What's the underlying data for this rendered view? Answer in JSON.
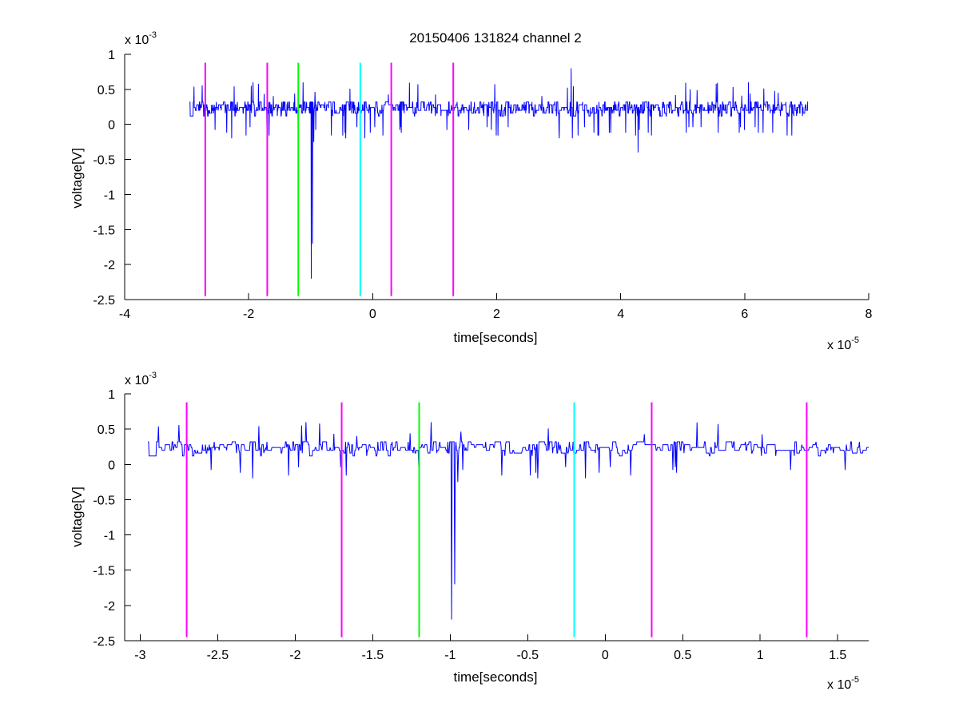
{
  "title": "20150406 131824 channel 2",
  "chart_data": [
    {
      "type": "line",
      "xlabel": "time[seconds]",
      "ylabel": "voltage[V]",
      "xlim": [
        -4e-05,
        8e-05
      ],
      "ylim": [
        -0.0025,
        0.001
      ],
      "x_ticks": [
        -4e-05,
        -2e-05,
        0,
        2e-05,
        4e-05,
        6e-05,
        8e-05
      ],
      "x_tick_labels": [
        "-4",
        "-2",
        "0",
        "2",
        "4",
        "6",
        "8"
      ],
      "y_ticks": [
        0.001,
        0.0005,
        0,
        -0.0005,
        -0.001,
        -0.0015,
        -0.002,
        -0.0025
      ],
      "y_tick_labels": [
        "1",
        "0.5",
        "0",
        "-0.5",
        "-1",
        "-1.5",
        "-2",
        "-2.5"
      ],
      "x_exponent": {
        "base": "x 10",
        "power": "-5"
      },
      "y_exponent": {
        "base": "x 10",
        "power": "-3"
      },
      "grid": false,
      "signal": {
        "color": "#0000ff",
        "x_start": -2.95e-05,
        "x_end": 7.02e-05,
        "quantum": 3.96e-05,
        "baseline_levels": [
          0.0002,
          0.00024,
          0.00028,
          0.00016,
          0.00032,
          0.00012
        ],
        "level_weights": [
          5,
          3,
          3,
          2,
          2,
          1
        ],
        "spikes": [
          {
            "x": -9.9e-06,
            "y": -0.0022
          },
          {
            "x": -9.7e-06,
            "y": -0.0017
          },
          {
            "x": -9.5e-06,
            "y": -0.00025
          },
          {
            "x": 3.2e-05,
            "y": 0.0008
          },
          {
            "x": 4.28e-05,
            "y": -0.0004
          },
          {
            "x": 6.06e-05,
            "y": 0.0006
          },
          {
            "x": 5.54e-05,
            "y": 0.00058
          }
        ]
      },
      "markers": [
        {
          "x": -2.7e-05,
          "color": "#ff00ff"
        },
        {
          "x": -1.7e-05,
          "color": "#ff00ff"
        },
        {
          "x": -1.2e-05,
          "color": "#00ff00"
        },
        {
          "x": -2e-06,
          "color": "#00ffff"
        },
        {
          "x": 3e-06,
          "color": "#ff00ff"
        },
        {
          "x": 1.3e-05,
          "color": "#ff00ff"
        }
      ],
      "marker_range": [
        -0.00245,
        0.00088
      ]
    },
    {
      "type": "line",
      "xlabel": "time[seconds]",
      "ylabel": "voltage[V]",
      "xlim": [
        -3.1e-05,
        1.7e-05
      ],
      "ylim": [
        -0.0025,
        0.001
      ],
      "x_ticks": [
        -3e-05,
        -2.5e-05,
        -2e-05,
        -1.5e-05,
        -1e-05,
        -5e-06,
        0,
        5e-06,
        1e-05,
        1.5e-05
      ],
      "x_tick_labels": [
        "-3",
        "-2.5",
        "-2",
        "-1.5",
        "-1",
        "-0.5",
        "0",
        "0.5",
        "1",
        "1.5"
      ],
      "y_ticks": [
        0.001,
        0.0005,
        0,
        -0.0005,
        -0.001,
        -0.0015,
        -0.002,
        -0.0025
      ],
      "y_tick_labels": [
        "1",
        "0.5",
        "0",
        "-0.5",
        "-1",
        "-1.5",
        "-2",
        "-2.5"
      ],
      "x_exponent": {
        "base": "x 10",
        "power": "-5"
      },
      "y_exponent": {
        "base": "x 10",
        "power": "-3"
      },
      "grid": false,
      "signal": {
        "color": "#0000ff",
        "x_start": -2.95e-05,
        "x_end": 1.7e-05,
        "quantum": 3.96e-05,
        "baseline_levels": [
          0.0002,
          0.00024,
          0.00028,
          0.00016,
          0.00032,
          0.00012
        ],
        "level_weights": [
          5,
          3,
          3,
          2,
          2,
          1
        ],
        "spikes": [
          {
            "x": -9.9e-06,
            "y": -0.0022
          },
          {
            "x": -9.7e-06,
            "y": -0.0017
          },
          {
            "x": -9.5e-06,
            "y": -0.00025
          }
        ]
      },
      "markers": [
        {
          "x": -2.7e-05,
          "color": "#ff00ff"
        },
        {
          "x": -1.7e-05,
          "color": "#ff00ff"
        },
        {
          "x": -1.2e-05,
          "color": "#00ff00"
        },
        {
          "x": -2e-06,
          "color": "#00ffff"
        },
        {
          "x": 3e-06,
          "color": "#ff00ff"
        },
        {
          "x": 1.3e-05,
          "color": "#ff00ff"
        }
      ],
      "marker_range": [
        -0.00245,
        0.00088
      ]
    }
  ]
}
